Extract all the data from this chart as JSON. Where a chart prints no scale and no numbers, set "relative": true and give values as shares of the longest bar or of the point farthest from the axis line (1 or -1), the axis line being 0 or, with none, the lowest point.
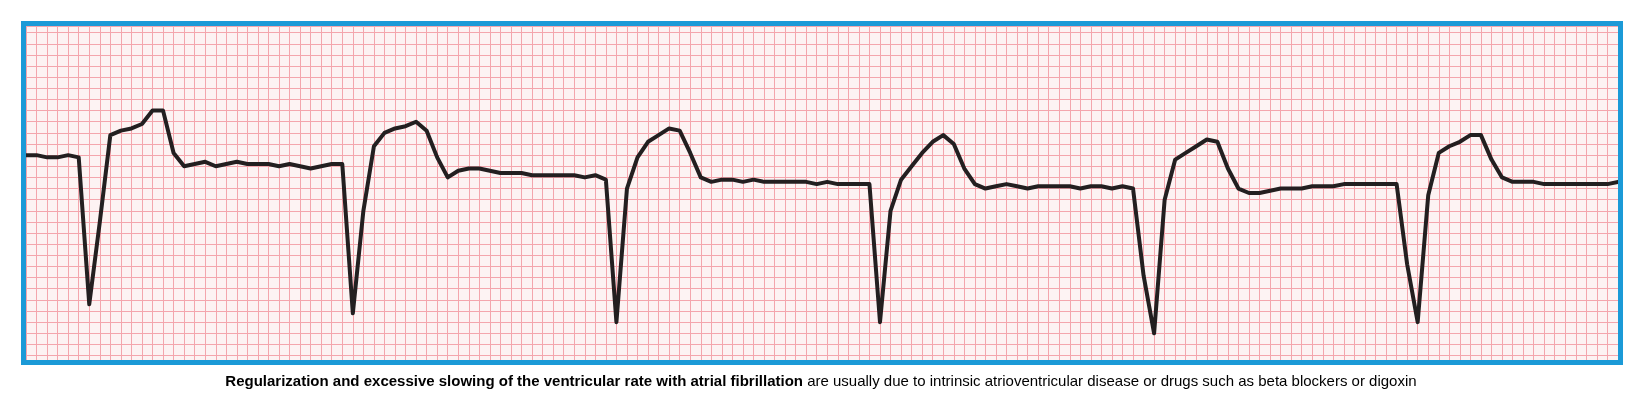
{
  "chart_data": {
    "type": "line",
    "relative": true,
    "grid": true,
    "color": "#231f20",
    "marker": "none",
    "line_style": "solid",
    "annotations": [
      "Regularization and excessive slowing of the ventricular rate with atrial fibrillation",
      "are usually due to intrinsic atrioventricular disease or drugs such as beta blockers or digoxin"
    ],
    "categories": [
      null,
      null,
      null,
      null,
      null,
      null,
      null,
      null,
      null,
      null,
      null,
      null,
      null,
      null,
      null,
      null,
      null,
      null,
      null,
      null,
      null,
      null,
      null,
      null,
      null,
      null,
      null,
      null,
      null,
      null,
      null,
      null,
      null,
      null,
      null,
      null,
      null,
      null,
      null,
      null,
      null,
      null,
      null,
      null,
      null,
      null,
      null,
      null,
      null,
      null,
      null,
      null,
      null,
      null,
      null,
      null,
      null,
      null,
      null,
      null,
      null,
      null,
      null,
      null,
      null,
      null,
      null,
      null,
      null,
      null,
      null,
      null,
      null,
      null,
      null,
      null,
      null,
      null,
      null,
      null,
      null,
      null,
      null,
      null,
      null,
      null,
      null,
      null,
      null,
      null,
      null,
      null,
      null,
      null,
      null,
      null,
      null,
      null,
      null,
      null,
      null,
      null,
      null,
      null,
      null,
      null,
      null,
      null,
      null,
      null,
      null,
      null,
      null,
      null,
      null,
      null,
      null,
      null,
      null,
      null,
      null,
      null,
      null,
      null,
      null,
      null,
      null,
      null,
      null,
      null,
      null,
      null,
      null,
      null,
      null,
      null,
      null,
      null,
      null,
      null,
      null,
      null,
      null,
      null,
      null,
      null,
      null,
      null,
      null,
      null,
      null,
      null
    ],
    "values": [
      0.8,
      0.8,
      0.79,
      0.79,
      0.8,
      0.79,
      0.13,
      0.5,
      0.89,
      0.91,
      0.92,
      0.94,
      1.0,
      1.0,
      0.81,
      0.75,
      0.76,
      0.77,
      0.75,
      0.76,
      0.77,
      0.76,
      0.76,
      0.76,
      0.75,
      0.76,
      0.75,
      0.74,
      0.75,
      0.76,
      0.76,
      0.09,
      0.55,
      0.84,
      0.9,
      0.92,
      0.93,
      0.95,
      0.91,
      0.79,
      0.7,
      0.73,
      0.74,
      0.74,
      0.73,
      0.72,
      0.72,
      0.72,
      0.71,
      0.71,
      0.71,
      0.71,
      0.71,
      0.7,
      0.71,
      0.69,
      0.05,
      0.65,
      0.79,
      0.86,
      0.89,
      0.92,
      0.91,
      0.81,
      0.7,
      0.68,
      0.69,
      0.69,
      0.68,
      0.69,
      0.68,
      0.68,
      0.68,
      0.68,
      0.68,
      0.67,
      0.68,
      0.67,
      0.67,
      0.67,
      0.67,
      0.05,
      0.55,
      0.69,
      0.75,
      0.81,
      0.86,
      0.89,
      0.85,
      0.74,
      0.67,
      0.65,
      0.66,
      0.67,
      0.66,
      0.65,
      0.66,
      0.66,
      0.66,
      0.66,
      0.65,
      0.66,
      0.66,
      0.65,
      0.66,
      0.65,
      0.26,
      0.0,
      0.6,
      0.78,
      0.81,
      0.84,
      0.87,
      0.86,
      0.74,
      0.65,
      0.63,
      0.63,
      0.64,
      0.65,
      0.65,
      0.65,
      0.66,
      0.66,
      0.66,
      0.67,
      0.67,
      0.67,
      0.67,
      0.67,
      0.67,
      0.31,
      0.05,
      0.62,
      0.81,
      0.84,
      0.86,
      0.89,
      0.89,
      0.78,
      0.7,
      0.68,
      0.68,
      0.68,
      0.67,
      0.67,
      0.67,
      0.67,
      0.67,
      0.67,
      0.67,
      0.68
    ]
  }
}
